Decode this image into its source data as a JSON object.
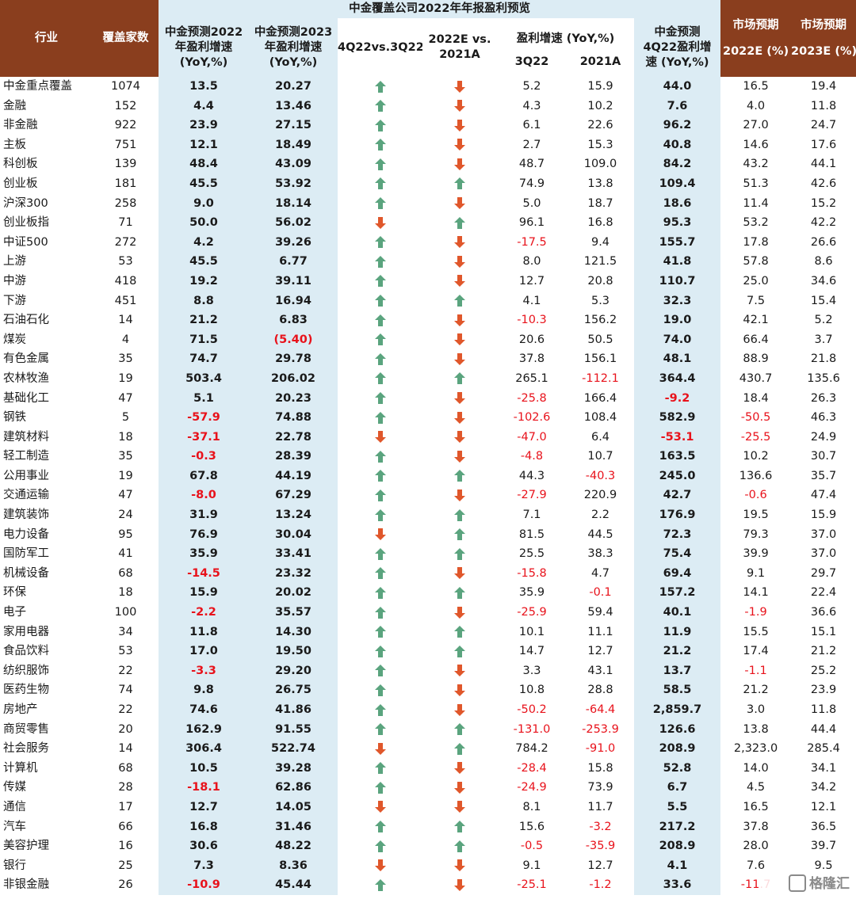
{
  "title": "中金覆盖公司2022年年报盈利预览",
  "headers": {
    "industry": "行业",
    "coverage": "覆盖家数",
    "cicc2022": "中金预测2022年盈利增速(YoY,%)",
    "cicc2023": "中金预测2023年盈利增速(YoY,%)",
    "q4vsq3": "4Q22vs.3Q22",
    "e2022vs2021": "2022E vs. 2021A",
    "growth_group": "盈利增速 (YoY,%)",
    "q3": "3Q22",
    "a2021": "2021A",
    "cicc4q22": "中金预测4Q22盈利增速 (YoY,%)",
    "mkt2022_top": "市场预期",
    "mkt2022_bot": "2022E (%)",
    "mkt2023_top": "市场预期",
    "mkt2023_bot": "2023E (%)"
  },
  "header_lines": {
    "cicc2022": [
      "中金预测2022",
      "年盈利增速",
      "(YoY,%)"
    ],
    "cicc2023": [
      "中金预测2023",
      "年盈利增速",
      "(YoY,%)"
    ],
    "e2022vs2021": [
      "2022E vs.",
      "2021A"
    ],
    "cicc4q22": [
      "中金预测",
      "4Q22盈利增",
      "速 (YoY,%)"
    ]
  },
  "colors": {
    "header_bg": "#8a3e1e",
    "blue_bg": "#dcecf4",
    "negative": "#e8121b",
    "up_arrow": "#5aa47e",
    "down_arrow": "#e0572b"
  },
  "rows": [
    {
      "name": "中金重点覆盖",
      "n": "1074",
      "e22": "13.5",
      "e23": "20.27",
      "a1": "up",
      "a2": "down",
      "q3": "5.2",
      "a21": "15.9",
      "q4": "44.0",
      "m22": "16.5",
      "m23": "19.4"
    },
    {
      "name": "金融",
      "n": "152",
      "e22": "4.4",
      "e23": "13.46",
      "a1": "up",
      "a2": "down",
      "q3": "4.3",
      "a21": "10.2",
      "q4": "7.6",
      "m22": "4.0",
      "m23": "11.8"
    },
    {
      "name": "非金融",
      "n": "922",
      "e22": "23.9",
      "e23": "27.15",
      "a1": "up",
      "a2": "down",
      "q3": "6.1",
      "a21": "22.6",
      "q4": "96.2",
      "m22": "27.0",
      "m23": "24.7"
    },
    {
      "name": "主板",
      "n": "751",
      "e22": "12.1",
      "e23": "18.49",
      "a1": "up",
      "a2": "down",
      "q3": "2.7",
      "a21": "15.3",
      "q4": "40.8",
      "m22": "14.6",
      "m23": "17.6"
    },
    {
      "name": "科创板",
      "n": "139",
      "e22": "48.4",
      "e23": "43.09",
      "a1": "up",
      "a2": "down",
      "q3": "48.7",
      "a21": "109.0",
      "q4": "84.2",
      "m22": "43.2",
      "m23": "44.1"
    },
    {
      "name": "创业板",
      "n": "181",
      "e22": "45.5",
      "e23": "53.92",
      "a1": "up",
      "a2": "up",
      "q3": "74.9",
      "a21": "13.8",
      "q4": "109.4",
      "m22": "51.3",
      "m23": "42.6"
    },
    {
      "name": "沪深300",
      "n": "258",
      "e22": "9.0",
      "e23": "18.14",
      "a1": "up",
      "a2": "down",
      "q3": "5.0",
      "a21": "18.7",
      "q4": "18.6",
      "m22": "11.4",
      "m23": "15.2"
    },
    {
      "name": "创业板指",
      "n": "71",
      "e22": "50.0",
      "e23": "56.02",
      "a1": "down",
      "a2": "up",
      "q3": "96.1",
      "a21": "16.8",
      "q4": "95.3",
      "m22": "53.2",
      "m23": "42.2"
    },
    {
      "name": "中证500",
      "n": "272",
      "e22": "4.2",
      "e23": "39.26",
      "a1": "up",
      "a2": "down",
      "q3": "-17.5",
      "a21": "9.4",
      "q4": "155.7",
      "m22": "17.8",
      "m23": "26.6"
    },
    {
      "name": "上游",
      "n": "53",
      "e22": "45.5",
      "e23": "6.77",
      "a1": "up",
      "a2": "down",
      "q3": "8.0",
      "a21": "121.5",
      "q4": "41.8",
      "m22": "57.8",
      "m23": "8.6"
    },
    {
      "name": "中游",
      "n": "418",
      "e22": "19.2",
      "e23": "39.11",
      "a1": "up",
      "a2": "down",
      "q3": "12.7",
      "a21": "20.8",
      "q4": "110.7",
      "m22": "25.0",
      "m23": "34.6"
    },
    {
      "name": "下游",
      "n": "451",
      "e22": "8.8",
      "e23": "16.94",
      "a1": "up",
      "a2": "up",
      "q3": "4.1",
      "a21": "5.3",
      "q4": "32.3",
      "m22": "7.5",
      "m23": "15.4"
    },
    {
      "name": "石油石化",
      "n": "14",
      "e22": "21.2",
      "e23": "6.83",
      "a1": "up",
      "a2": "down",
      "q3": "-10.3",
      "a21": "156.2",
      "q4": "19.0",
      "m22": "42.1",
      "m23": "5.2"
    },
    {
      "name": "煤炭",
      "n": "4",
      "e22": "71.5",
      "e23": "(5.40)",
      "a1": "up",
      "a2": "down",
      "q3": "20.6",
      "a21": "50.5",
      "q4": "74.0",
      "m22": "66.4",
      "m23": "3.7"
    },
    {
      "name": "有色金属",
      "n": "35",
      "e22": "74.7",
      "e23": "29.78",
      "a1": "up",
      "a2": "down",
      "q3": "37.8",
      "a21": "156.1",
      "q4": "48.1",
      "m22": "88.9",
      "m23": "21.8"
    },
    {
      "name": "农林牧渔",
      "n": "19",
      "e22": "503.4",
      "e23": "206.02",
      "a1": "up",
      "a2": "up",
      "q3": "265.1",
      "a21": "-112.1",
      "q4": "364.4",
      "m22": "430.7",
      "m23": "135.6"
    },
    {
      "name": "基础化工",
      "n": "47",
      "e22": "5.1",
      "e23": "20.23",
      "a1": "up",
      "a2": "down",
      "q3": "-25.8",
      "a21": "166.4",
      "q4": "-9.2",
      "m22": "18.4",
      "m23": "26.3"
    },
    {
      "name": "钢铁",
      "n": "5",
      "e22": "-57.9",
      "e23": "74.88",
      "a1": "up",
      "a2": "down",
      "q3": "-102.6",
      "a21": "108.4",
      "q4": "582.9",
      "m22": "-50.5",
      "m23": "46.3"
    },
    {
      "name": "建筑材料",
      "n": "18",
      "e22": "-37.1",
      "e23": "22.78",
      "a1": "down",
      "a2": "down",
      "q3": "-47.0",
      "a21": "6.4",
      "q4": "-53.1",
      "m22": "-25.5",
      "m23": "24.9"
    },
    {
      "name": "轻工制造",
      "n": "35",
      "e22": "-0.3",
      "e23": "28.39",
      "a1": "up",
      "a2": "down",
      "q3": "-4.8",
      "a21": "10.7",
      "q4": "163.5",
      "m22": "10.2",
      "m23": "30.7"
    },
    {
      "name": "公用事业",
      "n": "19",
      "e22": "67.8",
      "e23": "44.19",
      "a1": "up",
      "a2": "up",
      "q3": "44.3",
      "a21": "-40.3",
      "q4": "245.0",
      "m22": "136.6",
      "m23": "35.7"
    },
    {
      "name": "交通运输",
      "n": "47",
      "e22": "-8.0",
      "e23": "67.29",
      "a1": "up",
      "a2": "down",
      "q3": "-27.9",
      "a21": "220.9",
      "q4": "42.7",
      "m22": "-0.6",
      "m23": "47.4"
    },
    {
      "name": "建筑装饰",
      "n": "24",
      "e22": "31.9",
      "e23": "13.24",
      "a1": "up",
      "a2": "up",
      "q3": "7.1",
      "a21": "2.2",
      "q4": "176.9",
      "m22": "19.5",
      "m23": "15.9"
    },
    {
      "name": "电力设备",
      "n": "95",
      "e22": "76.9",
      "e23": "30.04",
      "a1": "down",
      "a2": "up",
      "q3": "81.5",
      "a21": "44.5",
      "q4": "72.3",
      "m22": "79.3",
      "m23": "37.0"
    },
    {
      "name": "国防军工",
      "n": "41",
      "e22": "35.9",
      "e23": "33.41",
      "a1": "up",
      "a2": "up",
      "q3": "25.5",
      "a21": "38.3",
      "q4": "75.4",
      "m22": "39.9",
      "m23": "37.0"
    },
    {
      "name": "机械设备",
      "n": "68",
      "e22": "-14.5",
      "e23": "23.32",
      "a1": "up",
      "a2": "down",
      "q3": "-15.8",
      "a21": "4.7",
      "q4": "69.4",
      "m22": "9.1",
      "m23": "29.7"
    },
    {
      "name": "环保",
      "n": "18",
      "e22": "15.9",
      "e23": "20.02",
      "a1": "up",
      "a2": "up",
      "q3": "35.9",
      "a21": "-0.1",
      "q4": "157.2",
      "m22": "14.1",
      "m23": "22.4"
    },
    {
      "name": "电子",
      "n": "100",
      "e22": "-2.2",
      "e23": "35.57",
      "a1": "up",
      "a2": "down",
      "q3": "-25.9",
      "a21": "59.4",
      "q4": "40.1",
      "m22": "-1.9",
      "m23": "36.6"
    },
    {
      "name": "家用电器",
      "n": "34",
      "e22": "11.8",
      "e23": "14.30",
      "a1": "up",
      "a2": "up",
      "q3": "10.1",
      "a21": "11.1",
      "q4": "11.9",
      "m22": "15.5",
      "m23": "15.1"
    },
    {
      "name": "食品饮料",
      "n": "53",
      "e22": "17.0",
      "e23": "19.50",
      "a1": "up",
      "a2": "up",
      "q3": "14.7",
      "a21": "12.7",
      "q4": "21.2",
      "m22": "17.4",
      "m23": "21.2"
    },
    {
      "name": "纺织服饰",
      "n": "22",
      "e22": "-3.3",
      "e23": "29.20",
      "a1": "up",
      "a2": "down",
      "q3": "3.3",
      "a21": "43.1",
      "q4": "13.7",
      "m22": "-1.1",
      "m23": "25.2"
    },
    {
      "name": "医药生物",
      "n": "74",
      "e22": "9.8",
      "e23": "26.75",
      "a1": "up",
      "a2": "down",
      "q3": "10.8",
      "a21": "28.8",
      "q4": "58.5",
      "m22": "21.2",
      "m23": "23.9"
    },
    {
      "name": "房地产",
      "n": "22",
      "e22": "74.6",
      "e23": "41.86",
      "a1": "up",
      "a2": "down",
      "q3": "-50.2",
      "a21": "-64.4",
      "q4": "2,859.7",
      "m22": "3.0",
      "m23": "11.8"
    },
    {
      "name": "商贸零售",
      "n": "20",
      "e22": "162.9",
      "e23": "91.55",
      "a1": "up",
      "a2": "up",
      "q3": "-131.0",
      "a21": "-253.9",
      "q4": "126.6",
      "m22": "13.8",
      "m23": "44.4"
    },
    {
      "name": "社会服务",
      "n": "14",
      "e22": "306.4",
      "e23": "522.74",
      "a1": "down",
      "a2": "up",
      "q3": "784.2",
      "a21": "-91.0",
      "q4": "208.9",
      "m22": "2,323.0",
      "m23": "285.4"
    },
    {
      "name": "计算机",
      "n": "68",
      "e22": "10.5",
      "e23": "39.28",
      "a1": "up",
      "a2": "down",
      "q3": "-28.4",
      "a21": "15.8",
      "q4": "52.8",
      "m22": "14.0",
      "m23": "34.1"
    },
    {
      "name": "传媒",
      "n": "28",
      "e22": "-18.1",
      "e23": "62.86",
      "a1": "up",
      "a2": "down",
      "q3": "-24.9",
      "a21": "73.9",
      "q4": "6.7",
      "m22": "4.5",
      "m23": "34.2"
    },
    {
      "name": "通信",
      "n": "17",
      "e22": "12.7",
      "e23": "14.05",
      "a1": "down",
      "a2": "down",
      "q3": "8.1",
      "a21": "11.7",
      "q4": "5.5",
      "m22": "16.5",
      "m23": "12.1"
    },
    {
      "name": "汽车",
      "n": "66",
      "e22": "16.8",
      "e23": "31.46",
      "a1": "up",
      "a2": "up",
      "q3": "15.6",
      "a21": "-3.2",
      "q4": "217.2",
      "m22": "37.8",
      "m23": "36.5"
    },
    {
      "name": "美容护理",
      "n": "16",
      "e22": "30.6",
      "e23": "48.22",
      "a1": "up",
      "a2": "up",
      "q3": "-0.5",
      "a21": "-35.9",
      "q4": "208.9",
      "m22": "28.0",
      "m23": "39.7"
    },
    {
      "name": "银行",
      "n": "25",
      "e22": "7.3",
      "e23": "8.36",
      "a1": "down",
      "a2": "down",
      "q3": "9.1",
      "a21": "12.7",
      "q4": "4.1",
      "m22": "7.6",
      "m23": "9.5"
    },
    {
      "name": "非银金融",
      "n": "26",
      "e22": "-10.9",
      "e23": "45.44",
      "a1": "up",
      "a2": "down",
      "q3": "-25.1",
      "a21": "-1.2",
      "q4": "33.6",
      "m22": "-11.7",
      "m23": "24.3"
    }
  ],
  "watermark": "格隆汇"
}
